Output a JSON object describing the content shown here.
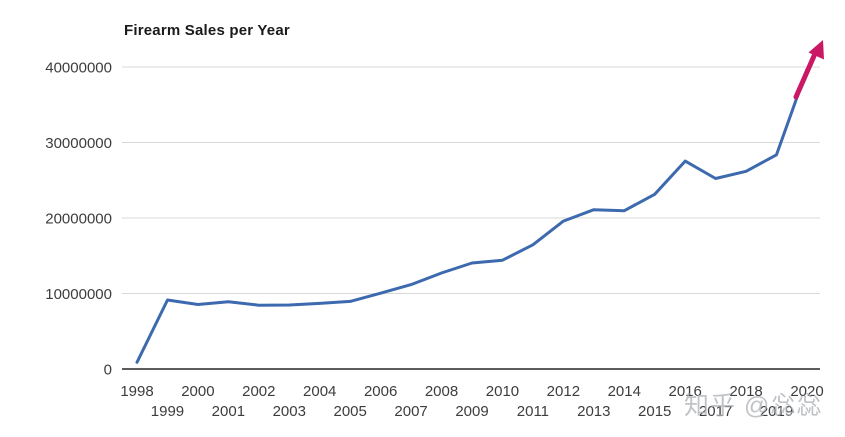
{
  "chart_data": {
    "type": "line",
    "title": "Firearm Sales per Year",
    "categories": [
      1998,
      1999,
      2000,
      2001,
      2002,
      2003,
      2004,
      2005,
      2006,
      2007,
      2008,
      2009,
      2010,
      2011,
      2012,
      2013,
      2014,
      2015,
      2016,
      2017,
      2018,
      2019,
      2020
    ],
    "series": [
      {
        "name": "Firearm sales",
        "values": [
          893000,
          9138000,
          8543000,
          8910000,
          8454000,
          8482000,
          8688000,
          8953000,
          10037000,
          11177000,
          12709000,
          14034000,
          14410000,
          16455000,
          19592000,
          21093000,
          20969000,
          23142000,
          27539000,
          25235000,
          26181000,
          28370000,
          39696000
        ]
      }
    ],
    "xlabel": "",
    "ylabel": "",
    "ylim": [
      0,
      40000000
    ],
    "yticks": [
      0,
      10000000,
      20000000,
      30000000,
      40000000
    ],
    "grid": "horizontal",
    "legend": "none",
    "line_color": "#3d6aae",
    "gridline_color": "#d9d9d9",
    "baseline_color": "#262626",
    "tick_label_color": "#3d3d3d",
    "annotation": {
      "type": "arrow-up",
      "color": "#cb1864",
      "position": "end-of-line-2020"
    }
  },
  "watermark": {
    "text": "知乎 @惢惢"
  }
}
